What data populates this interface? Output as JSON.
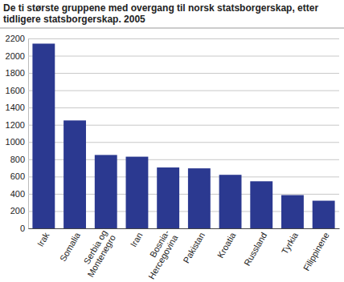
{
  "chart_data": {
    "type": "bar",
    "title": "De ti største gruppene med overgang til norsk statsborgerskap, etter tidligere statsborgerskap. 2005",
    "categories": [
      "Irak",
      "Somalia",
      "Serbia og Montenegro",
      "Iran",
      "Bosnia-Hercegovina",
      "Pakistan",
      "Kroatia",
      "Russland",
      "Tyrkia",
      "Filippinene"
    ],
    "values": [
      2140,
      1250,
      850,
      830,
      705,
      695,
      620,
      545,
      385,
      320
    ],
    "color": "#2b3990",
    "ylim": [
      0,
      2200
    ],
    "yticks": [
      0,
      200,
      400,
      600,
      800,
      1000,
      1200,
      1400,
      1600,
      1800,
      2000,
      2200
    ],
    "grid": true
  }
}
